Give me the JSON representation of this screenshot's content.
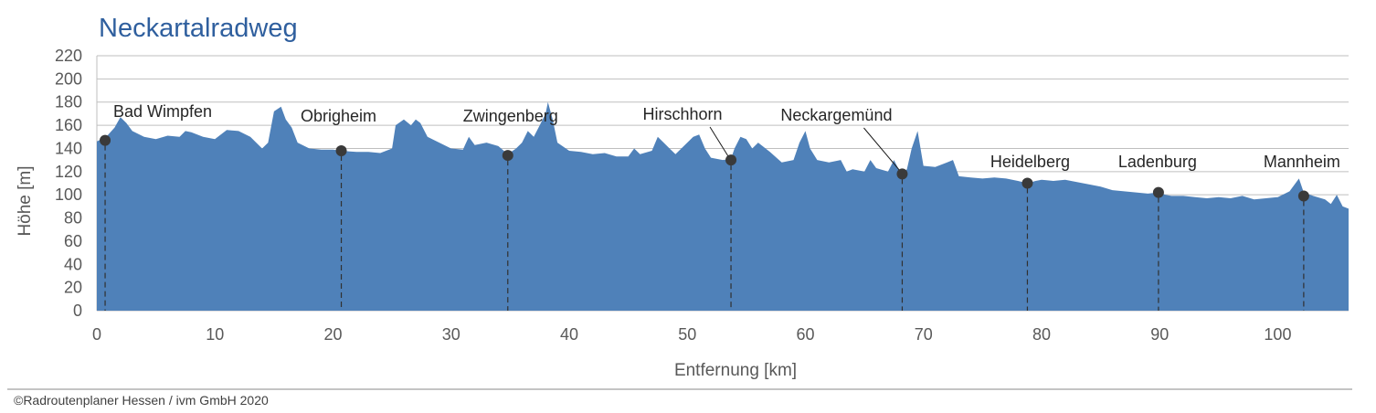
{
  "chart_data": {
    "type": "area",
    "title": "Neckartalradweg",
    "xlabel": "Entfernung [km]",
    "ylabel": "Höhe [m]",
    "xlim": [
      0,
      106
    ],
    "ylim": [
      0,
      220
    ],
    "x_ticks": [
      0,
      10,
      20,
      30,
      40,
      50,
      60,
      70,
      80,
      90,
      100
    ],
    "y_ticks": [
      0,
      20,
      40,
      60,
      80,
      100,
      120,
      140,
      160,
      180,
      200,
      220
    ],
    "grid": true,
    "colors": {
      "area": "#4f81b9",
      "title": "#2f5f9e",
      "marker": "#3a3a3a"
    },
    "profile": [
      [
        0,
        146
      ],
      [
        0.8,
        150
      ],
      [
        1.5,
        158
      ],
      [
        2,
        167
      ],
      [
        2.5,
        162
      ],
      [
        3,
        155
      ],
      [
        4,
        150
      ],
      [
        5,
        148
      ],
      [
        6,
        151
      ],
      [
        7,
        150
      ],
      [
        7.5,
        155
      ],
      [
        8,
        154
      ],
      [
        9,
        150
      ],
      [
        10,
        148
      ],
      [
        11,
        156
      ],
      [
        12,
        155
      ],
      [
        13,
        150
      ],
      [
        14,
        140
      ],
      [
        14.5,
        145
      ],
      [
        15,
        172
      ],
      [
        15.6,
        176
      ],
      [
        16,
        165
      ],
      [
        16.5,
        158
      ],
      [
        17,
        145
      ],
      [
        18,
        140
      ],
      [
        19,
        139
      ],
      [
        20,
        139
      ],
      [
        20.7,
        138
      ],
      [
        22,
        137
      ],
      [
        23,
        137
      ],
      [
        24,
        136
      ],
      [
        25,
        140
      ],
      [
        25.3,
        160
      ],
      [
        26,
        165
      ],
      [
        26.6,
        160
      ],
      [
        27,
        165
      ],
      [
        27.4,
        162
      ],
      [
        28,
        150
      ],
      [
        29,
        145
      ],
      [
        30,
        140
      ],
      [
        31,
        139
      ],
      [
        31.5,
        150
      ],
      [
        32,
        143
      ],
      [
        33,
        145
      ],
      [
        34,
        142
      ],
      [
        34.8,
        135
      ],
      [
        35.5,
        140
      ],
      [
        36,
        145
      ],
      [
        36.5,
        155
      ],
      [
        37,
        150
      ],
      [
        37.5,
        160
      ],
      [
        38,
        170
      ],
      [
        38.2,
        180
      ],
      [
        38.6,
        165
      ],
      [
        39,
        145
      ],
      [
        40,
        138
      ],
      [
        41,
        137
      ],
      [
        42,
        135
      ],
      [
        43,
        136
      ],
      [
        44,
        133
      ],
      [
        45,
        133
      ],
      [
        45.5,
        140
      ],
      [
        46,
        135
      ],
      [
        47,
        138
      ],
      [
        47.5,
        150
      ],
      [
        48,
        145
      ],
      [
        48.5,
        140
      ],
      [
        49,
        135
      ],
      [
        50,
        145
      ],
      [
        50.5,
        150
      ],
      [
        51,
        152
      ],
      [
        51.5,
        140
      ],
      [
        52,
        132
      ],
      [
        53,
        130
      ],
      [
        53.7,
        131
      ],
      [
        54,
        140
      ],
      [
        54.5,
        150
      ],
      [
        55,
        148
      ],
      [
        55.5,
        140
      ],
      [
        56,
        145
      ],
      [
        57,
        137
      ],
      [
        58,
        128
      ],
      [
        59,
        130
      ],
      [
        59.5,
        145
      ],
      [
        60,
        155
      ],
      [
        60.4,
        140
      ],
      [
        61,
        130
      ],
      [
        62,
        128
      ],
      [
        63,
        130
      ],
      [
        63.5,
        120
      ],
      [
        64,
        122
      ],
      [
        65,
        120
      ],
      [
        65.5,
        130
      ],
      [
        66,
        123
      ],
      [
        67,
        120
      ],
      [
        67.5,
        130
      ],
      [
        68,
        120
      ],
      [
        68.2,
        118
      ],
      [
        68.6,
        122
      ],
      [
        69,
        140
      ],
      [
        69.5,
        155
      ],
      [
        70,
        125
      ],
      [
        71,
        124
      ],
      [
        72,
        128
      ],
      [
        72.5,
        130
      ],
      [
        73,
        116
      ],
      [
        74,
        115
      ],
      [
        75,
        114
      ],
      [
        76,
        115
      ],
      [
        77,
        114
      ],
      [
        78,
        112
      ],
      [
        78.8,
        110
      ],
      [
        79.5,
        112
      ],
      [
        80,
        113
      ],
      [
        81,
        112
      ],
      [
        82,
        113
      ],
      [
        83,
        111
      ],
      [
        84,
        109
      ],
      [
        85,
        107
      ],
      [
        86,
        104
      ],
      [
        87,
        103
      ],
      [
        88,
        102
      ],
      [
        89,
        101
      ],
      [
        89.9,
        102
      ],
      [
        90.5,
        100
      ],
      [
        91,
        99
      ],
      [
        92,
        99
      ],
      [
        93,
        98
      ],
      [
        94,
        97
      ],
      [
        95,
        98
      ],
      [
        96,
        97
      ],
      [
        97,
        99
      ],
      [
        98,
        96
      ],
      [
        99,
        97
      ],
      [
        100,
        98
      ],
      [
        101,
        103
      ],
      [
        101.8,
        114
      ],
      [
        102.2,
        102
      ],
      [
        103,
        99
      ],
      [
        104,
        96
      ],
      [
        104.5,
        92
      ],
      [
        105,
        100
      ],
      [
        105.5,
        90
      ],
      [
        106,
        88
      ]
    ],
    "annotations": [
      {
        "label": "Bad Wimpfen",
        "x": 0.7,
        "y": 147
      },
      {
        "label": "Obrigheim",
        "x": 20.7,
        "y": 138
      },
      {
        "label": "Zwingenberg",
        "x": 34.8,
        "y": 134
      },
      {
        "label": "Hirschhorn",
        "x": 53.7,
        "y": 130
      },
      {
        "label": "Neckargemünd",
        "x": 68.2,
        "y": 118
      },
      {
        "label": "Heidelberg",
        "x": 78.8,
        "y": 110
      },
      {
        "label": "Ladenburg",
        "x": 89.9,
        "y": 102
      },
      {
        "label": "Mannheim",
        "x": 102.2,
        "y": 99
      }
    ]
  },
  "footer": "©Radroutenplaner Hessen / ivm GmbH 2020"
}
